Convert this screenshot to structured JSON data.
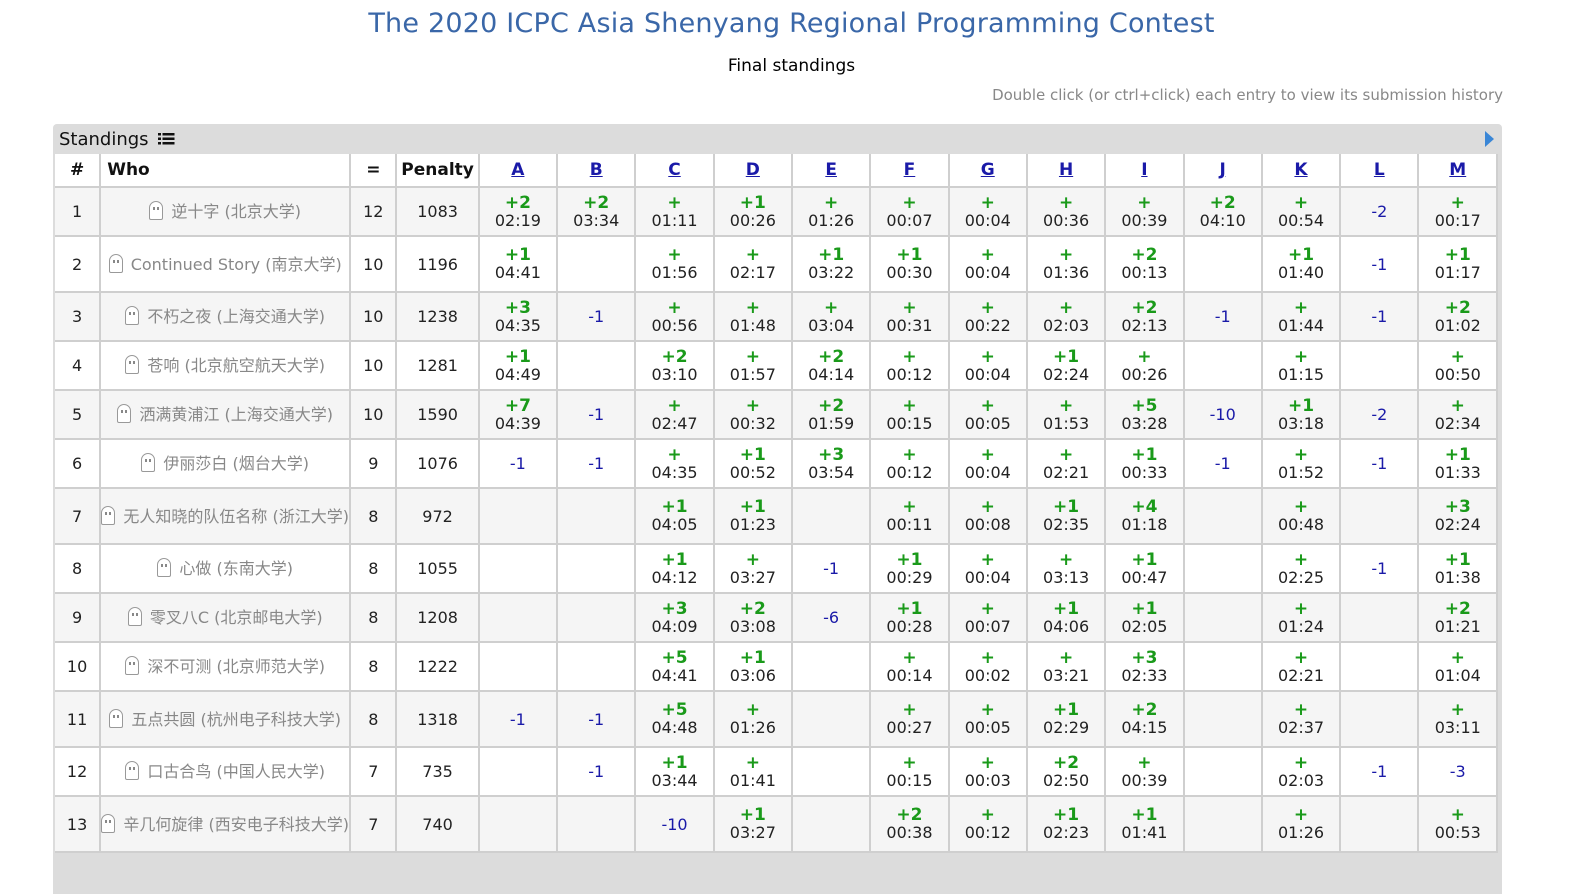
{
  "title": "The 2020 ICPC Asia Shenyang Regional Programming Contest",
  "subtitle": "Final standings",
  "hint": "Double click (or ctrl+click) each entry to view its submission history",
  "panel": {
    "title": "Standings"
  },
  "columns": {
    "rank": "#",
    "who": "Who",
    "solved": "=",
    "penalty": "Penalty"
  },
  "problems": [
    "A",
    "B",
    "C",
    "D",
    "E",
    "F",
    "G",
    "H",
    "I",
    "J",
    "K",
    "L",
    "M"
  ],
  "rows": [
    {
      "rank": "1",
      "who": "逆十字 (北京大学)",
      "solved": "12",
      "penalty": "1083",
      "cells": [
        [
          "+2",
          "02:19"
        ],
        [
          "+2",
          "03:34"
        ],
        [
          "+",
          "01:11"
        ],
        [
          "+1",
          "00:26"
        ],
        [
          "+",
          "01:26"
        ],
        [
          "+",
          "00:07"
        ],
        [
          "+",
          "00:04"
        ],
        [
          "+",
          "00:36"
        ],
        [
          "+",
          "00:39"
        ],
        [
          "+2",
          "04:10"
        ],
        [
          "+",
          "00:54"
        ],
        [
          "-2",
          ""
        ],
        [
          "+",
          "00:17"
        ]
      ]
    },
    {
      "rank": "2",
      "who": "Continued Story (南京大学)",
      "solved": "10",
      "penalty": "1196",
      "cells": [
        [
          "+1",
          "04:41"
        ],
        [
          "",
          ""
        ],
        [
          "+",
          "01:56"
        ],
        [
          "+",
          "02:17"
        ],
        [
          "+1",
          "03:22"
        ],
        [
          "+1",
          "00:30"
        ],
        [
          "+",
          "00:04"
        ],
        [
          "+",
          "01:36"
        ],
        [
          "+2",
          "00:13"
        ],
        [
          "",
          ""
        ],
        [
          "+1",
          "01:40"
        ],
        [
          "-1",
          ""
        ],
        [
          "+1",
          "01:17"
        ]
      ]
    },
    {
      "rank": "3",
      "who": "不朽之夜 (上海交通大学)",
      "solved": "10",
      "penalty": "1238",
      "cells": [
        [
          "+3",
          "04:35"
        ],
        [
          "-1",
          ""
        ],
        [
          "+",
          "00:56"
        ],
        [
          "+",
          "01:48"
        ],
        [
          "+",
          "03:04"
        ],
        [
          "+",
          "00:31"
        ],
        [
          "+",
          "00:22"
        ],
        [
          "+",
          "02:03"
        ],
        [
          "+2",
          "02:13"
        ],
        [
          "-1",
          ""
        ],
        [
          "+",
          "01:44"
        ],
        [
          "-1",
          ""
        ],
        [
          "+2",
          "01:02"
        ]
      ]
    },
    {
      "rank": "4",
      "who": "苍响 (北京航空航天大学)",
      "solved": "10",
      "penalty": "1281",
      "cells": [
        [
          "+1",
          "04:49"
        ],
        [
          "",
          ""
        ],
        [
          "+2",
          "03:10"
        ],
        [
          "+",
          "01:57"
        ],
        [
          "+2",
          "04:14"
        ],
        [
          "+",
          "00:12"
        ],
        [
          "+",
          "00:04"
        ],
        [
          "+1",
          "02:24"
        ],
        [
          "+",
          "00:26"
        ],
        [
          "",
          ""
        ],
        [
          "+",
          "01:15"
        ],
        [
          "",
          ""
        ],
        [
          "+",
          "00:50"
        ]
      ]
    },
    {
      "rank": "5",
      "who": "洒满黄浦江 (上海交通大学)",
      "solved": "10",
      "penalty": "1590",
      "cells": [
        [
          "+7",
          "04:39"
        ],
        [
          "-1",
          ""
        ],
        [
          "+",
          "02:47"
        ],
        [
          "+",
          "00:32"
        ],
        [
          "+2",
          "01:59"
        ],
        [
          "+",
          "00:15"
        ],
        [
          "+",
          "00:05"
        ],
        [
          "+",
          "01:53"
        ],
        [
          "+5",
          "03:28"
        ],
        [
          "-10",
          ""
        ],
        [
          "+1",
          "03:18"
        ],
        [
          "-2",
          ""
        ],
        [
          "+",
          "02:34"
        ]
      ]
    },
    {
      "rank": "6",
      "who": "伊丽莎白 (烟台大学)",
      "solved": "9",
      "penalty": "1076",
      "cells": [
        [
          "-1",
          ""
        ],
        [
          "-1",
          ""
        ],
        [
          "+",
          "04:35"
        ],
        [
          "+1",
          "00:52"
        ],
        [
          "+3",
          "03:54"
        ],
        [
          "+",
          "00:12"
        ],
        [
          "+",
          "00:04"
        ],
        [
          "+",
          "02:21"
        ],
        [
          "+1",
          "00:33"
        ],
        [
          "-1",
          ""
        ],
        [
          "+",
          "01:52"
        ],
        [
          "-1",
          ""
        ],
        [
          "+1",
          "01:33"
        ]
      ]
    },
    {
      "rank": "7",
      "who": "无人知晓的队伍名称 (浙江大学)",
      "solved": "8",
      "penalty": "972",
      "cells": [
        [
          "",
          ""
        ],
        [
          "",
          ""
        ],
        [
          "+1",
          "04:05"
        ],
        [
          "+1",
          "01:23"
        ],
        [
          "",
          ""
        ],
        [
          "+",
          "00:11"
        ],
        [
          "+",
          "00:08"
        ],
        [
          "+1",
          "02:35"
        ],
        [
          "+4",
          "01:18"
        ],
        [
          "",
          ""
        ],
        [
          "+",
          "00:48"
        ],
        [
          "",
          ""
        ],
        [
          "+3",
          "02:24"
        ]
      ]
    },
    {
      "rank": "8",
      "who": "心做 (东南大学)",
      "solved": "8",
      "penalty": "1055",
      "cells": [
        [
          "",
          ""
        ],
        [
          "",
          ""
        ],
        [
          "+1",
          "04:12"
        ],
        [
          "+",
          "03:27"
        ],
        [
          "-1",
          ""
        ],
        [
          "+1",
          "00:29"
        ],
        [
          "+",
          "00:04"
        ],
        [
          "+",
          "03:13"
        ],
        [
          "+1",
          "00:47"
        ],
        [
          "",
          ""
        ],
        [
          "+",
          "02:25"
        ],
        [
          "-1",
          ""
        ],
        [
          "+1",
          "01:38"
        ]
      ]
    },
    {
      "rank": "9",
      "who": "零叉八C (北京邮电大学)",
      "solved": "8",
      "penalty": "1208",
      "cells": [
        [
          "",
          ""
        ],
        [
          "",
          ""
        ],
        [
          "+3",
          "04:09"
        ],
        [
          "+2",
          "03:08"
        ],
        [
          "-6",
          ""
        ],
        [
          "+1",
          "00:28"
        ],
        [
          "+",
          "00:07"
        ],
        [
          "+1",
          "04:06"
        ],
        [
          "+1",
          "02:05"
        ],
        [
          "",
          ""
        ],
        [
          "+",
          "01:24"
        ],
        [
          "",
          ""
        ],
        [
          "+2",
          "01:21"
        ]
      ]
    },
    {
      "rank": "10",
      "who": "深不可测 (北京师范大学)",
      "solved": "8",
      "penalty": "1222",
      "cells": [
        [
          "",
          ""
        ],
        [
          "",
          ""
        ],
        [
          "+5",
          "04:41"
        ],
        [
          "+1",
          "03:06"
        ],
        [
          "",
          ""
        ],
        [
          "+",
          "00:14"
        ],
        [
          "+",
          "00:02"
        ],
        [
          "+",
          "03:21"
        ],
        [
          "+3",
          "02:33"
        ],
        [
          "",
          ""
        ],
        [
          "+",
          "02:21"
        ],
        [
          "",
          ""
        ],
        [
          "+",
          "01:04"
        ]
      ]
    },
    {
      "rank": "11",
      "who": "五点共圆 (杭州电子科技大学)",
      "solved": "8",
      "penalty": "1318",
      "cells": [
        [
          "-1",
          ""
        ],
        [
          "-1",
          ""
        ],
        [
          "+5",
          "04:48"
        ],
        [
          "+",
          "01:26"
        ],
        [
          "",
          ""
        ],
        [
          "+",
          "00:27"
        ],
        [
          "+",
          "00:05"
        ],
        [
          "+1",
          "02:29"
        ],
        [
          "+2",
          "04:15"
        ],
        [
          "",
          ""
        ],
        [
          "+",
          "02:37"
        ],
        [
          "",
          ""
        ],
        [
          "+",
          "03:11"
        ]
      ]
    },
    {
      "rank": "12",
      "who": "口古合鸟 (中国人民大学)",
      "solved": "7",
      "penalty": "735",
      "cells": [
        [
          "",
          ""
        ],
        [
          "-1",
          ""
        ],
        [
          "+1",
          "03:44"
        ],
        [
          "+",
          "01:41"
        ],
        [
          "",
          ""
        ],
        [
          "+",
          "00:15"
        ],
        [
          "+",
          "00:03"
        ],
        [
          "+2",
          "02:50"
        ],
        [
          "+",
          "00:39"
        ],
        [
          "",
          ""
        ],
        [
          "+",
          "02:03"
        ],
        [
          "-1",
          ""
        ],
        [
          "-3",
          ""
        ]
      ]
    },
    {
      "rank": "13",
      "who": "辛几何旋律 (西安电子科技大学)",
      "solved": "7",
      "penalty": "740",
      "cells": [
        [
          "",
          ""
        ],
        [
          "",
          ""
        ],
        [
          "-10",
          ""
        ],
        [
          "+1",
          "03:27"
        ],
        [
          "",
          ""
        ],
        [
          "+2",
          "00:38"
        ],
        [
          "+",
          "00:12"
        ],
        [
          "+1",
          "02:23"
        ],
        [
          "+1",
          "01:41"
        ],
        [
          "",
          ""
        ],
        [
          "+",
          "01:26"
        ],
        [
          "",
          ""
        ],
        [
          "+",
          "00:53"
        ]
      ]
    }
  ]
}
